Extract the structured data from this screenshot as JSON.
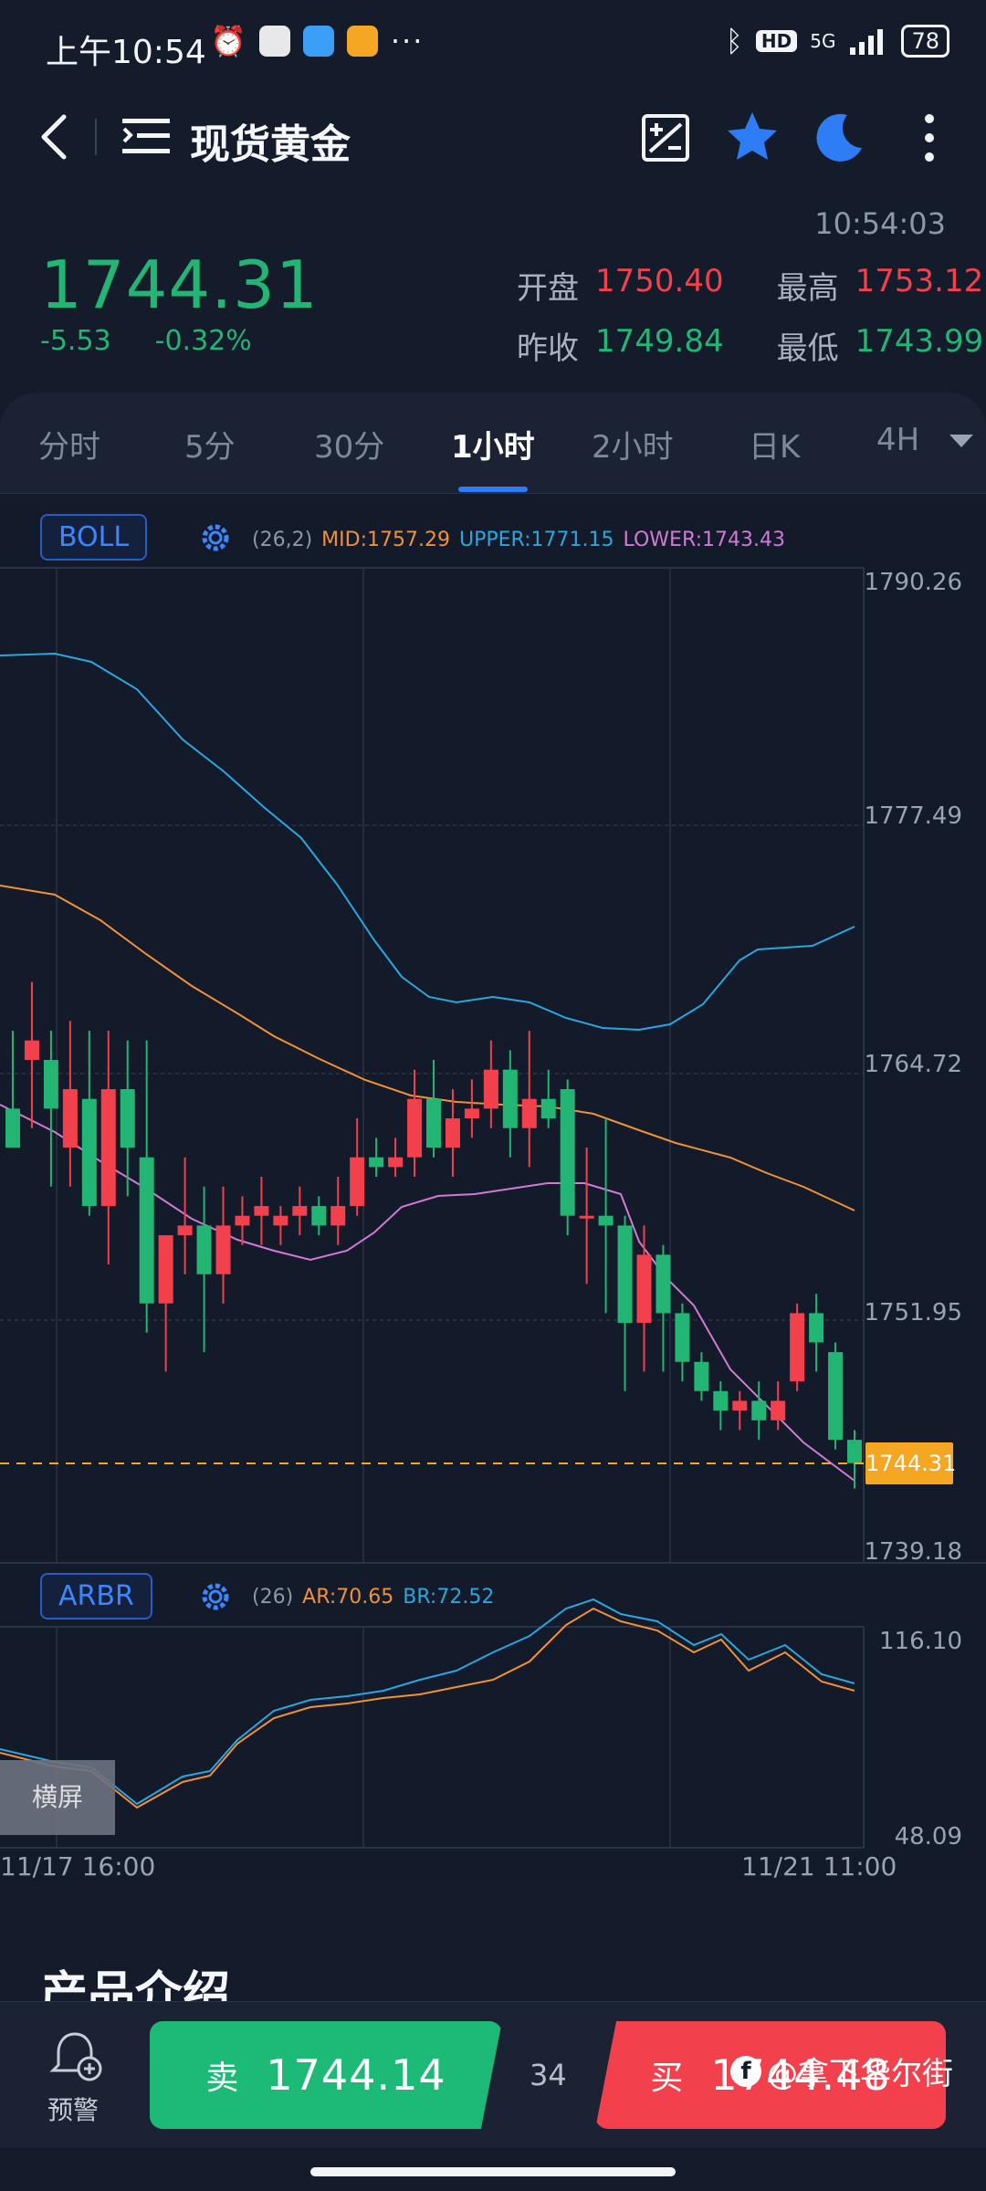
{
  "status_bar": {
    "time": "上午10:54",
    "network": "5G",
    "hd": "HD",
    "battery": "78"
  },
  "header": {
    "title": "现货黄金"
  },
  "quote": {
    "time": "10:54:03",
    "price": "1744.31",
    "change": "-5.53",
    "change_pct": "-0.32%",
    "open_label": "开盘",
    "open": "1750.40",
    "high_label": "最高",
    "high": "1753.12",
    "prev_close_label": "昨收",
    "prev_close": "1749.84",
    "low_label": "最低",
    "low": "1743.99"
  },
  "tabs": [
    "分时",
    "5分",
    "30分",
    "1小时",
    "2小时",
    "日K",
    "4H"
  ],
  "active_tab": "1小时",
  "boll": {
    "name": "BOLL",
    "params": "(26,2)",
    "mid": "MID:1757.29",
    "upper": "UPPER:1771.15",
    "lower": "LOWER:1743.43"
  },
  "arbr": {
    "name": "ARBR",
    "params": "(26)",
    "ar": "AR:70.65",
    "br": "BR:72.52"
  },
  "price_axis": [
    "1790.26",
    "1777.49",
    "1764.72",
    "1751.95",
    "1739.18"
  ],
  "arbr_axis": [
    "116.10",
    "48.09"
  ],
  "current_price_tag": "1744.31",
  "dates": {
    "start": "11/17 16:00",
    "end": "11/21 11:00"
  },
  "landscape_label": "横屏",
  "intro_title": "产品介绍",
  "bottom": {
    "alert_label": "预警",
    "sell_label": "卖",
    "sell_price": "1744.14",
    "spread": "34",
    "buy_label": "买",
    "buy_price": "1744.48"
  },
  "watermark": "@拿下华尔街",
  "colors": {
    "up": "#f2404d",
    "down": "#22b573",
    "mid": "#f0913a",
    "upper": "#2ba6de",
    "lower": "#d279d6",
    "accent": "#2f7df6"
  },
  "chart_data": {
    "type": "candlestick",
    "ylim": [
      1739.18,
      1790.26
    ],
    "candles": [
      [
        1762.5,
        1766.5,
        1760.5,
        1760.5
      ],
      [
        1765.0,
        1769.0,
        1761.5,
        1766.0
      ],
      [
        1765.0,
        1766.5,
        1758.5,
        1762.5
      ],
      [
        1760.5,
        1767.0,
        1758.5,
        1763.5
      ],
      [
        1763.0,
        1766.5,
        1757.0,
        1757.5
      ],
      [
        1757.5,
        1766.5,
        1754.5,
        1763.5
      ],
      [
        1763.5,
        1766.0,
        1758.0,
        1760.5
      ],
      [
        1760.0,
        1766.0,
        1751.0,
        1752.5
      ],
      [
        1752.5,
        1756.0,
        1749.0,
        1756.0
      ],
      [
        1756.0,
        1760.0,
        1754.0,
        1756.5
      ],
      [
        1756.5,
        1758.5,
        1750.0,
        1754.0
      ],
      [
        1754.0,
        1758.5,
        1752.5,
        1756.5
      ],
      [
        1756.5,
        1758.0,
        1755.5,
        1757.0
      ],
      [
        1757.0,
        1759.0,
        1755.5,
        1757.5
      ],
      [
        1756.5,
        1757.5,
        1755.5,
        1757.0
      ],
      [
        1757.0,
        1758.5,
        1756.0,
        1757.5
      ],
      [
        1757.5,
        1758.0,
        1756.0,
        1756.5
      ],
      [
        1756.5,
        1759.0,
        1755.5,
        1757.5
      ],
      [
        1757.5,
        1762.0,
        1757.0,
        1760.0
      ],
      [
        1760.0,
        1761.0,
        1759.0,
        1759.5
      ],
      [
        1759.5,
        1761.0,
        1759.0,
        1760.0
      ],
      [
        1760.0,
        1764.5,
        1759.0,
        1763.0
      ],
      [
        1763.0,
        1765.0,
        1760.0,
        1760.5
      ],
      [
        1760.5,
        1763.5,
        1759.0,
        1762.0
      ],
      [
        1762.0,
        1764.0,
        1761.0,
        1762.5
      ],
      [
        1762.5,
        1766.0,
        1761.5,
        1764.5
      ],
      [
        1764.5,
        1765.5,
        1760.0,
        1761.5
      ],
      [
        1761.5,
        1766.5,
        1759.5,
        1763.0
      ],
      [
        1763.0,
        1764.5,
        1761.5,
        1762.0
      ],
      [
        1763.5,
        1764.0,
        1756.0,
        1757.0
      ],
      [
        1757.0,
        1760.5,
        1753.5,
        1757.0
      ],
      [
        1757.0,
        1762.0,
        1752.0,
        1756.5
      ],
      [
        1756.5,
        1757.0,
        1748.0,
        1751.5
      ],
      [
        1751.5,
        1756.5,
        1749.0,
        1755.0
      ],
      [
        1755.0,
        1755.5,
        1749.0,
        1752.0
      ],
      [
        1752.0,
        1752.5,
        1748.5,
        1749.5
      ],
      [
        1749.5,
        1750.0,
        1747.5,
        1748.0
      ],
      [
        1748.0,
        1748.5,
        1746.0,
        1747.0
      ],
      [
        1747.0,
        1748.0,
        1746.0,
        1747.5
      ],
      [
        1747.5,
        1748.5,
        1745.5,
        1746.5
      ],
      [
        1746.5,
        1748.5,
        1746.0,
        1747.5
      ],
      [
        1748.5,
        1752.5,
        1748.0,
        1752.0
      ],
      [
        1752.0,
        1753.0,
        1749.0,
        1750.5
      ],
      [
        1750.0,
        1750.5,
        1745.0,
        1745.5
      ],
      [
        1745.5,
        1746.0,
        1743.0,
        1744.3
      ]
    ]
  }
}
